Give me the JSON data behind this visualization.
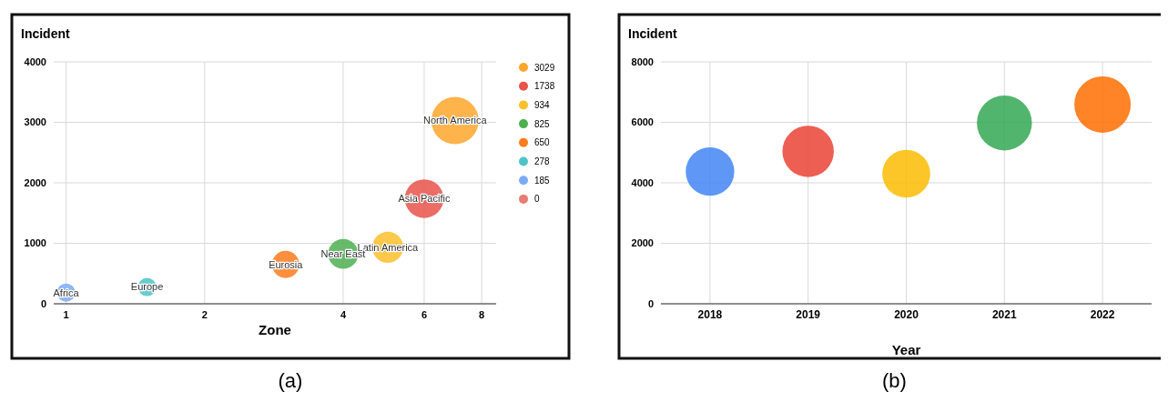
{
  "chart_data": [
    {
      "type": "bubble",
      "ylabel": "Incident",
      "xlabel": "Zone",
      "log": "x",
      "xlim": [
        0.94,
        8.6
      ],
      "xticks": [
        1,
        2,
        4,
        6,
        8
      ],
      "ylim": [
        0,
        4000
      ],
      "yticks": [
        0,
        1000,
        2000,
        3000,
        4000
      ],
      "grid": true,
      "legend": "right",
      "series": [
        {
          "name": "3029",
          "color": "#ffa62b",
          "x": [
            7
          ],
          "values": [
            3029
          ],
          "sizes": [
            1
          ]
        },
        {
          "name": "1738",
          "color": "#e8534a",
          "x": [
            6
          ],
          "values": [
            1738
          ],
          "sizes": [
            0.67
          ]
        },
        {
          "name": "934",
          "color": "#fbc02d",
          "x": [
            5
          ],
          "values": [
            934
          ],
          "sizes": [
            0.43
          ]
        },
        {
          "name": "825",
          "color": "#4caf50",
          "x": [
            4
          ],
          "values": [
            825
          ],
          "sizes": [
            0.4
          ]
        },
        {
          "name": "650",
          "color": "#ff7b1c",
          "x": [
            3
          ],
          "values": [
            650
          ],
          "sizes": [
            0.33
          ]
        },
        {
          "name": "278",
          "color": "#4fc3c7",
          "x": [
            1.5
          ],
          "values": [
            278
          ],
          "sizes": [
            0.15
          ]
        },
        {
          "name": "185",
          "color": "#7baaf7",
          "x": [
            1
          ],
          "values": [
            185
          ],
          "sizes": [
            0.15
          ]
        },
        {
          "name": "0",
          "color": "#e67c73"
        }
      ],
      "annotations": [
        {
          "text": "North America",
          "x": 7,
          "y": 3029
        },
        {
          "text": "Asia Pacific",
          "x": 6,
          "y": 1738
        },
        {
          "text": "Latin America",
          "x": 5,
          "y": 934
        },
        {
          "text": "Near East",
          "x": 4,
          "y": 825
        },
        {
          "text": "Eurosia",
          "x": 3,
          "y": 650
        },
        {
          "text": "Europe",
          "x": 1.5,
          "y": 278
        },
        {
          "text": "Africa",
          "x": 1,
          "y": 185
        },
        "(a)"
      ]
    },
    {
      "type": "bubble",
      "ylabel": "Incident",
      "xlabel": "Year",
      "categories": [
        "2018",
        "2019",
        "2020",
        "2021",
        "2022"
      ],
      "ylim": [
        0,
        8000
      ],
      "yticks": [
        0,
        2000,
        4000,
        6000,
        8000
      ],
      "grid": true,
      "values": [
        4370,
        5040,
        4300,
        5980,
        6590
      ],
      "sizes": [
        0.74,
        0.83,
        0.72,
        0.95,
        1
      ],
      "colors": [
        "#4285f4",
        "#ea4335",
        "#fbbc04",
        "#34a853",
        "#ff6d01"
      ],
      "annotations": [
        "(b)"
      ]
    }
  ]
}
